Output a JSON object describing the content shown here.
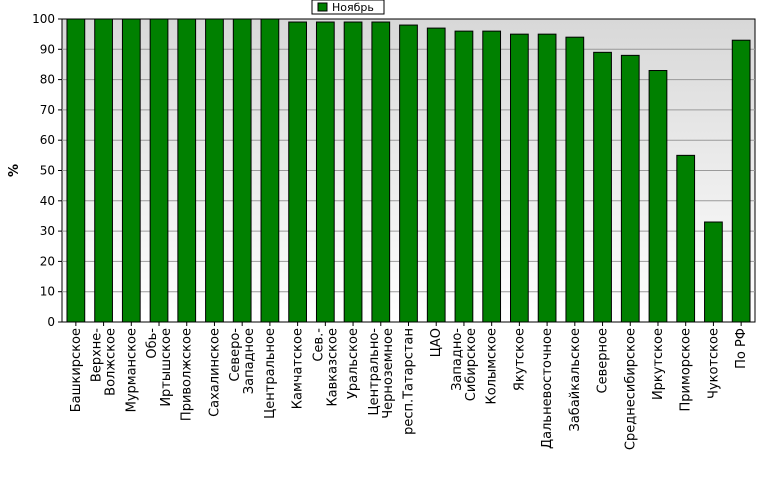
{
  "chart_data": {
    "type": "bar",
    "title": "",
    "xlabel": "",
    "ylabel": "%",
    "ylim": [
      0,
      100
    ],
    "yticks": [
      0,
      10,
      20,
      30,
      40,
      50,
      60,
      70,
      80,
      90,
      100
    ],
    "grid": true,
    "legend_position": "top-center",
    "legend": [
      "Ноябрь"
    ],
    "categories": [
      [
        "Башкирское"
      ],
      [
        "Верхне-",
        "Волжское"
      ],
      [
        "Мурманское"
      ],
      [
        "Обь-",
        "Иртышское"
      ],
      [
        "Приволжское"
      ],
      [
        "Сахалинское"
      ],
      [
        "Северо-",
        "Западное"
      ],
      [
        "Центральное"
      ],
      [
        "Камчатское"
      ],
      [
        "Сев.-",
        "Кавказское"
      ],
      [
        "Уральское"
      ],
      [
        "Центрально-",
        "Черноземное"
      ],
      [
        "респ.Татарстан"
      ],
      [
        "ЦАО"
      ],
      [
        "Западно-",
        "Сибирское"
      ],
      [
        "Колымское"
      ],
      [
        "Якутское"
      ],
      [
        "Дальневосточное"
      ],
      [
        "Забайкальское"
      ],
      [
        "Северное"
      ],
      [
        "Среднесибирское"
      ],
      [
        "Иркутское"
      ],
      [
        "Приморское"
      ],
      [
        "Чукотское"
      ],
      [
        "По РФ"
      ]
    ],
    "series": [
      {
        "name": "Ноябрь",
        "color": "#008000",
        "values": [
          100,
          100,
          100,
          100,
          100,
          100,
          100,
          100,
          99,
          99,
          99,
          99,
          98,
          97,
          96,
          96,
          95,
          95,
          94,
          89,
          88,
          83,
          55,
          33,
          93
        ]
      }
    ]
  }
}
